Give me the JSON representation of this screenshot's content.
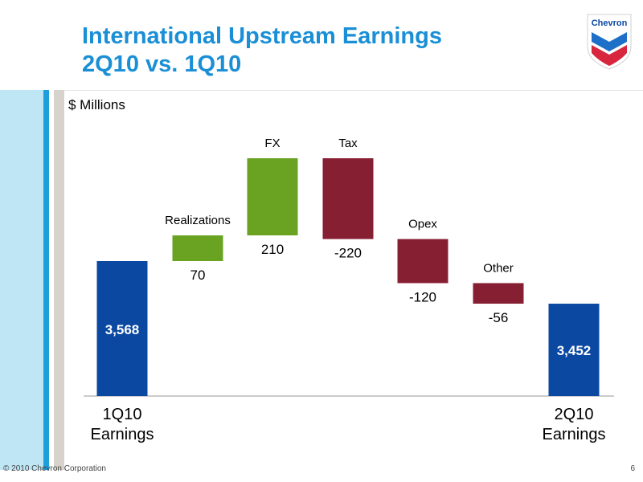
{
  "header": {
    "title_line1": "International Upstream Earnings",
    "title_line2": "2Q10 vs. 1Q10"
  },
  "logo": {
    "text": "Chevron",
    "icon": "chevron-logo-icon"
  },
  "footer": {
    "copyright": "© 2010 Chevron Corporation",
    "page_number": "6"
  },
  "colors": {
    "title": "#1a8fd6",
    "total_bar": "#0a48a2",
    "increase_bar": "#6aa321",
    "decrease_bar": "#871f33"
  },
  "chart_data": {
    "type": "bar",
    "variant": "waterfall",
    "unit_label": "$ Millions",
    "steps": [
      {
        "kind": "total",
        "label_lines": [
          "1Q10",
          "Earnings"
        ],
        "value": 3568,
        "display": "3,568"
      },
      {
        "kind": "increase",
        "label_lines": [
          "Realizations"
        ],
        "value": 70,
        "display": "70"
      },
      {
        "kind": "increase",
        "label_lines": [
          "FX"
        ],
        "value": 210,
        "display": "210"
      },
      {
        "kind": "decrease",
        "label_lines": [
          "Tax"
        ],
        "value": -220,
        "display": "-220"
      },
      {
        "kind": "decrease",
        "label_lines": [
          "Opex"
        ],
        "value": -120,
        "display": "-120"
      },
      {
        "kind": "decrease",
        "label_lines": [
          "Other"
        ],
        "value": -56,
        "display": "-56"
      },
      {
        "kind": "total",
        "label_lines": [
          "2Q10",
          "Earnings"
        ],
        "value": 3452,
        "display": "3,452"
      }
    ]
  }
}
